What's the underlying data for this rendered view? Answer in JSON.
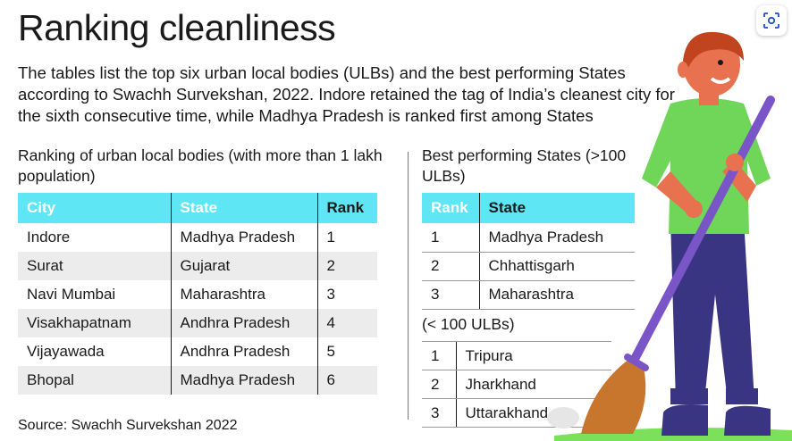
{
  "title": "Ranking cleanliness",
  "intro": "The tables list the top six urban local bodies (ULBs) and the best performing States according to Swachh Survekshan, 2022. Indore retained the tag of India’s cleanest city for the sixth consecutive time, while Madhya Pradesh is ranked first among States",
  "ulb_section": {
    "heading": "Ranking of urban local bodies (with more than 1 lakh population)",
    "headers": {
      "city": "City",
      "state": "State",
      "rank": "Rank"
    },
    "rows": [
      {
        "city": "Indore",
        "state": "Madhya Pradesh",
        "rank": "1"
      },
      {
        "city": "Surat",
        "state": "Gujarat",
        "rank": "2"
      },
      {
        "city": "Navi Mumbai",
        "state": "Maharashtra",
        "rank": "3"
      },
      {
        "city": "Visakhapatnam",
        "state": "Andhra Pradesh",
        "rank": "4"
      },
      {
        "city": "Vijayawada",
        "state": "Andhra Pradesh",
        "rank": "5"
      },
      {
        "city": "Bhopal",
        "state": "Madhya Pradesh",
        "rank": "6"
      }
    ]
  },
  "states_section": {
    "heading": "Best performing States (>100 ULBs)",
    "headers": {
      "rank": "Rank",
      "state": "State"
    },
    "over_100": [
      {
        "rank": "1",
        "state": "Madhya Pradesh"
      },
      {
        "rank": "2",
        "state": "Chhattisgarh"
      },
      {
        "rank": "3",
        "state": "Maharashtra"
      }
    ],
    "under_label": "(< 100 ULBs)",
    "under_100": [
      {
        "rank": "1",
        "state": "Tripura"
      },
      {
        "rank": "2",
        "state": "Jharkhand"
      },
      {
        "rank": "3",
        "state": "Uttarakhand"
      }
    ]
  },
  "source": "Source: Swachh Survekshan 2022",
  "colors": {
    "header_cyan": "#5ee6f4",
    "shirt_green": "#6fd65a",
    "pants_navy": "#3a3582",
    "broom_purple": "#7a55c8",
    "broom_bristle": "#c8762e",
    "skin": "#e8714f",
    "hair": "#c0451e"
  },
  "icons": {
    "scan": "screenshot-scan-icon",
    "illustration": "sweeper-illustration"
  }
}
